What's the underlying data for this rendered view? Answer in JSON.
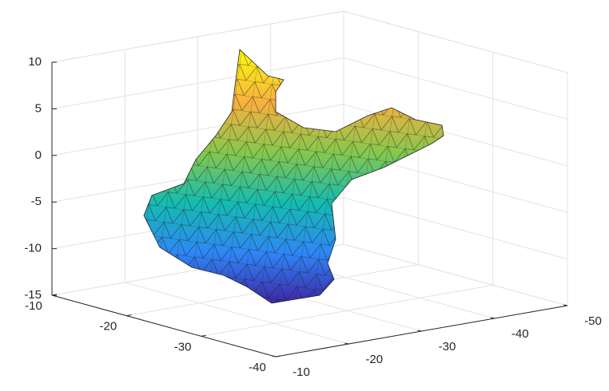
{
  "chart_data": {
    "type": "surface3d",
    "xlim": [
      -10,
      -40
    ],
    "xticks": [
      -10,
      -20,
      -30,
      -40
    ],
    "ylim": [
      -10,
      -50
    ],
    "yticks": [
      -10,
      -20,
      -30,
      -40,
      -50
    ],
    "zlim": [
      -15,
      10
    ],
    "zticks": [
      -15,
      -10,
      -5,
      0,
      5,
      10
    ],
    "grid": true,
    "colormap": [
      "#3e26a8",
      "#2e87f7",
      "#14bcb2",
      "#86c84d",
      "#f9b03f",
      "#f9fb0e"
    ]
  }
}
